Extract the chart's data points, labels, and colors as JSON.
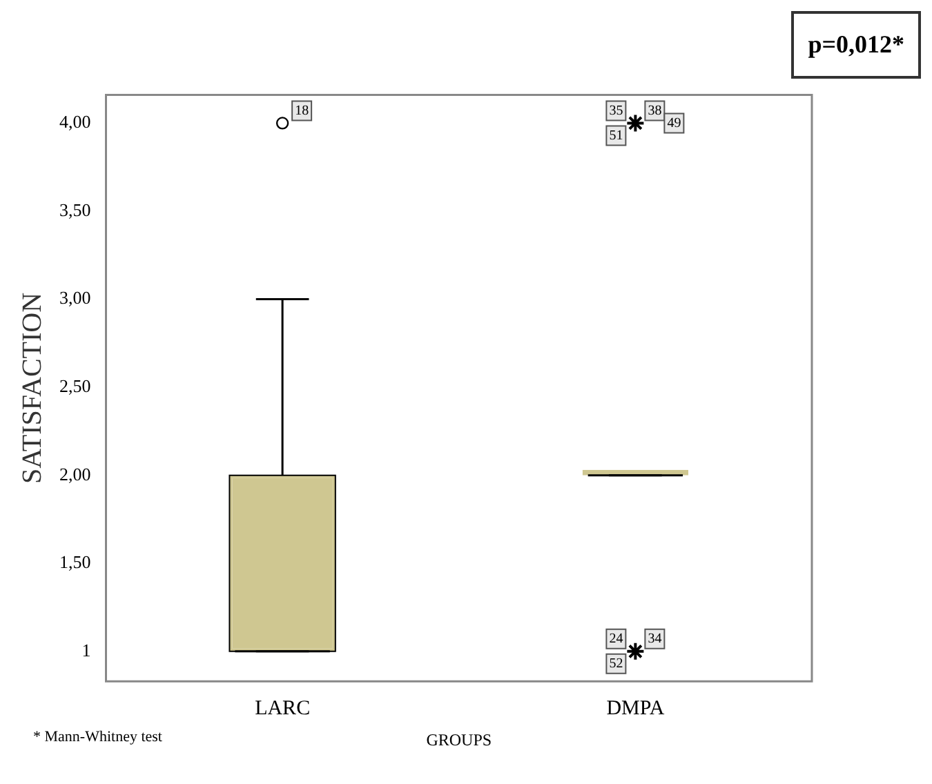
{
  "chart_data": {
    "type": "box",
    "title": "p=0,012*",
    "xlabel": "GROUPS",
    "ylabel": "SATISFACTION",
    "categories": [
      "LARC",
      "DMPA"
    ],
    "boxes": [
      {
        "low": 1,
        "q1": 1,
        "median": 1,
        "q3": 2,
        "high": 3
      },
      {
        "low": 2,
        "q1": 2,
        "median": 2,
        "q3": 2,
        "high": 2
      }
    ],
    "color": "#cfc791",
    "series": [
      {
        "type": "scatter",
        "x": [
          "LARC"
        ],
        "values": [
          4
        ],
        "marker": "circle",
        "color": "#000000"
      },
      {
        "type": "scatter",
        "x": [
          "DMPA",
          "DMPA"
        ],
        "values": [
          4,
          1
        ],
        "marker": "cross",
        "color": "#000000"
      }
    ],
    "ylim": [
      0.83,
      4.16
    ],
    "yticks": [
      {
        "value": 1,
        "label": "1"
      },
      {
        "value": 1.5,
        "label": "1,50"
      },
      {
        "value": 2,
        "label": "2,00"
      },
      {
        "value": 2.5,
        "label": "2,50"
      },
      {
        "value": 3,
        "label": "3,00"
      },
      {
        "value": 3.5,
        "label": "3,50"
      },
      {
        "value": 4,
        "label": "4,00"
      }
    ],
    "grid": false,
    "legend": false,
    "annotations": [
      {
        "text": "18",
        "x": "LARC",
        "y": 4
      },
      {
        "text": "38",
        "x": "DMPA",
        "y": 4
      },
      {
        "text": "35",
        "x": "DMPA",
        "y": 4
      },
      {
        "text": "51",
        "x": "DMPA",
        "y": 4
      },
      {
        "text": "49",
        "x": "DMPA",
        "y": 4
      },
      {
        "text": "34",
        "x": "DMPA",
        "y": 1
      },
      {
        "text": "24",
        "x": "DMPA",
        "y": 1
      },
      {
        "text": "52",
        "x": "DMPA",
        "y": 1
      },
      "* Mann-Whitney test"
    ]
  }
}
